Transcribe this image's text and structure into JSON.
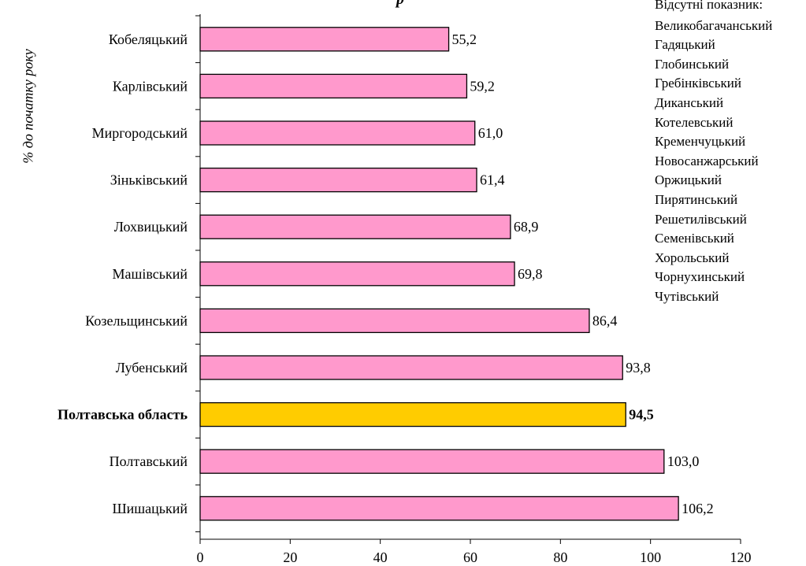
{
  "chart_data": {
    "type": "bar",
    "orientation": "horizontal",
    "title": "р",
    "ylabel": "% до початку року",
    "xlim": [
      0,
      120
    ],
    "xticks": [
      0,
      20,
      40,
      60,
      80,
      100,
      120
    ],
    "categories": [
      "Кобеляцький",
      "Карлівський",
      "Миргородський",
      "Зіньківський",
      "Лохвицький",
      "Машівський",
      "Козельщинський",
      "Лубенський",
      "Полтавська область",
      "Полтавський",
      "Шишацький"
    ],
    "values": [
      55.2,
      59.2,
      61.0,
      61.4,
      68.9,
      69.8,
      86.4,
      93.8,
      94.5,
      103.0,
      106.2
    ],
    "value_labels": [
      "55,2",
      "59,2",
      "61,0",
      "61,4",
      "68,9",
      "69,8",
      "86,4",
      "93,8",
      "94,5",
      "103,0",
      "106,2"
    ],
    "highlight": "Полтавська область",
    "colors": {
      "bar": "#ff99cc",
      "highlight": "#ffcc00",
      "edge": "#000000"
    },
    "grid": false,
    "legend_placement": "right"
  },
  "missing_note": {
    "heading": "Відсутні показник:",
    "items": [
      "Великобагачанський",
      "Гадяцький",
      "Глобинський",
      "Гребінківський",
      "Диканський",
      "Котелевський",
      "Кременчуцький",
      "Новосанжарський",
      "Оржицький",
      "Пирятинський",
      "Решетилівський",
      "Семенівський",
      "Хорольський",
      "Чорнухинський",
      "Чутівський"
    ]
  }
}
